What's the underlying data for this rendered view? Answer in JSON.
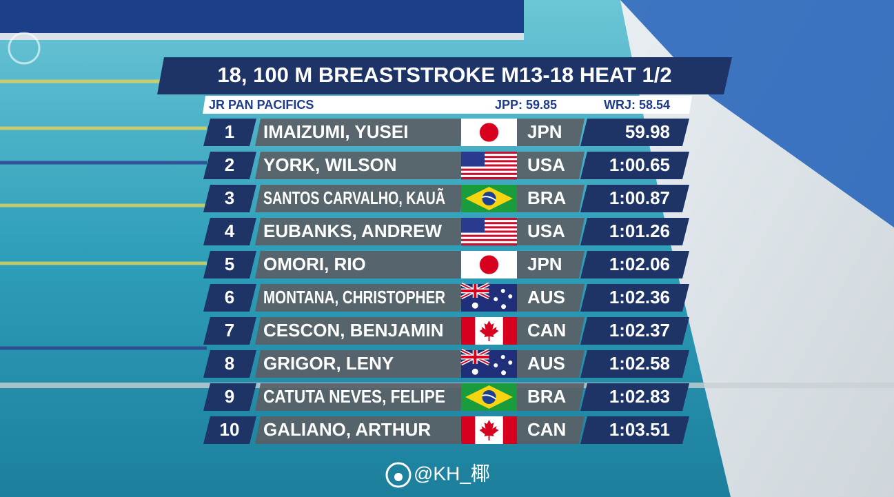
{
  "header": {
    "title": "18, 100 M BREASTSTROKE M13-18 HEAT 1/2",
    "meet": "JR PAN PACIFICS",
    "record_1": "JPP: 59.85",
    "record_2": "WRJ: 58.54"
  },
  "rows": [
    {
      "rank": 1,
      "name": "IMAIZUMI, YUSEI",
      "country": "JPN",
      "time": "59.98"
    },
    {
      "rank": 2,
      "name": "YORK, WILSON",
      "country": "USA",
      "time": "1:00.65"
    },
    {
      "rank": 3,
      "name": "SANTOS CARVALHO, KAUÃ",
      "country": "BRA",
      "time": "1:00.87"
    },
    {
      "rank": 4,
      "name": "EUBANKS, ANDREW",
      "country": "USA",
      "time": "1:01.26"
    },
    {
      "rank": 5,
      "name": "OMORI, RIO",
      "country": "JPN",
      "time": "1:02.06"
    },
    {
      "rank": 6,
      "name": "MONTANA, CHRISTOPHER",
      "country": "AUS",
      "time": "1:02.36"
    },
    {
      "rank": 7,
      "name": "CESCON, BENJAMIN",
      "country": "CAN",
      "time": "1:02.37"
    },
    {
      "rank": 8,
      "name": "GRIGOR, LENY",
      "country": "AUS",
      "time": "1:02.58"
    },
    {
      "rank": 9,
      "name": "CATUTA NEVES, FELIPE",
      "country": "BRA",
      "time": "1:02.83"
    },
    {
      "rank": 10,
      "name": "GALIANO, ARTHUR",
      "country": "CAN",
      "time": "1:03.51"
    }
  ],
  "watermark": "@KH_椰"
}
